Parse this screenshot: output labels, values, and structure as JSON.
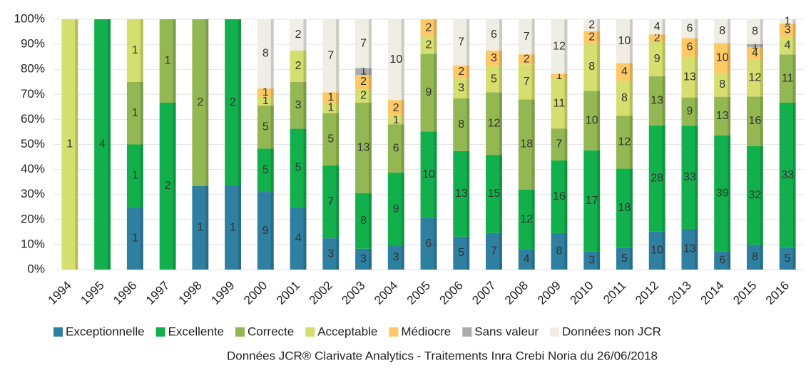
{
  "chart_data": {
    "type": "bar",
    "stacked": "percent",
    "categories": [
      "1994",
      "1995",
      "1996",
      "1997",
      "1998",
      "1999",
      "2000",
      "2001",
      "2002",
      "2003",
      "2004",
      "2005",
      "2006",
      "2007",
      "2008",
      "2009",
      "2010",
      "2011",
      "2012",
      "2013",
      "2014",
      "2015",
      "2016"
    ],
    "series": [
      {
        "name": "Exceptionnelle",
        "color": "#2f7fa0",
        "values": [
          null,
          null,
          1,
          null,
          1,
          1,
          9,
          4,
          3,
          3,
          3,
          6,
          5,
          7,
          4,
          8,
          3,
          5,
          10,
          13,
          6,
          8,
          5
        ]
      },
      {
        "name": "Excellente",
        "color": "#12b04c",
        "values": [
          null,
          4,
          1,
          2,
          null,
          2,
          5,
          5,
          7,
          8,
          9,
          10,
          13,
          15,
          12,
          16,
          17,
          18,
          28,
          33,
          39,
          32,
          33
        ]
      },
      {
        "name": "Correcte",
        "color": "#93b853",
        "values": [
          null,
          null,
          1,
          1,
          2,
          null,
          5,
          3,
          5,
          13,
          6,
          9,
          8,
          12,
          18,
          7,
          10,
          12,
          13,
          9,
          13,
          16,
          11
        ]
      },
      {
        "name": "Acceptable",
        "color": "#d5de6e",
        "values": [
          1,
          null,
          1,
          null,
          null,
          null,
          1,
          2,
          1,
          2,
          1,
          2,
          3,
          5,
          7,
          11,
          8,
          8,
          9,
          13,
          8,
          12,
          4
        ]
      },
      {
        "name": "Médiocre",
        "color": "#fdc865",
        "values": [
          null,
          null,
          null,
          null,
          null,
          null,
          1,
          null,
          1,
          2,
          2,
          2,
          2,
          3,
          2,
          1,
          2,
          4,
          2,
          6,
          10,
          4,
          3
        ]
      },
      {
        "name": "Sans valeur",
        "color": "#ababab",
        "values": [
          null,
          null,
          null,
          null,
          null,
          null,
          null,
          null,
          null,
          1,
          null,
          null,
          null,
          null,
          null,
          null,
          null,
          null,
          null,
          null,
          null,
          1,
          null
        ]
      },
      {
        "name": "Données non JCR",
        "color": "#efede4",
        "values": [
          null,
          null,
          null,
          null,
          null,
          null,
          8,
          2,
          7,
          7,
          10,
          null,
          7,
          6,
          7,
          12,
          2,
          10,
          4,
          6,
          8,
          8,
          1
        ]
      }
    ],
    "ylim": [
      0,
      100
    ],
    "yticks": [
      {
        "value": 0,
        "label": "0%"
      },
      {
        "value": 10,
        "label": "10%"
      },
      {
        "value": 20,
        "label": "20%"
      },
      {
        "value": 30,
        "label": "30%"
      },
      {
        "value": 40,
        "label": "40%"
      },
      {
        "value": 50,
        "label": "50%"
      },
      {
        "value": 60,
        "label": "60%"
      },
      {
        "value": 70,
        "label": "70%"
      },
      {
        "value": 80,
        "label": "80%"
      },
      {
        "value": 90,
        "label": "90%"
      },
      {
        "value": 100,
        "label": "100%"
      }
    ],
    "grid": true,
    "legend": "bottom",
    "footnote": "Données JCR® Clarivate Analytics - Traitements Inra Crebi Noria du 26/06/2018"
  }
}
